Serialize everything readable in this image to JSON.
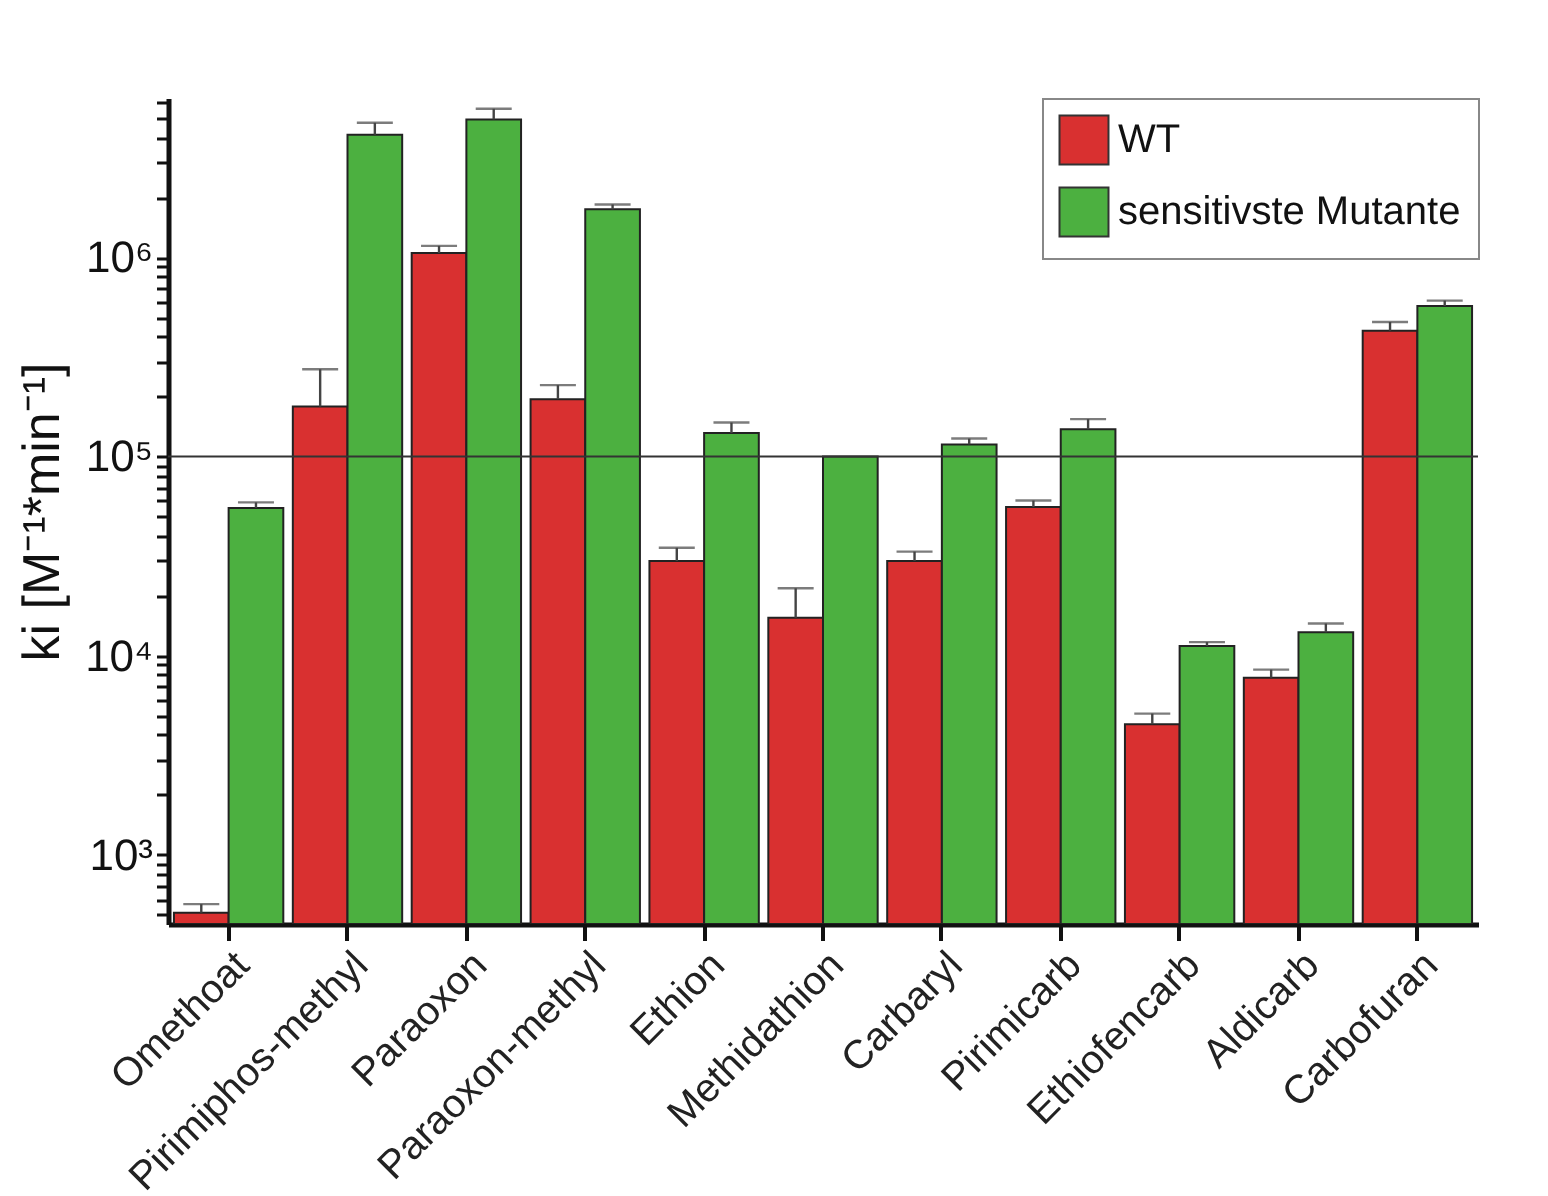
{
  "chart_data": {
    "type": "bar",
    "ylabel": "ki [M⁻¹*min⁻¹]",
    "categories": [
      "Omethoat",
      "Pirimiphos-methyl",
      "Paraoxon",
      "Paraoxon-methyl",
      "Ethion",
      "Methidathion",
      "Carbaryl",
      "Pirimicarb",
      "Ethiofencarb",
      "Aldicarb",
      "Carbofuran"
    ],
    "series": [
      {
        "name": "WT",
        "color": "#d93030",
        "values": [
          513,
          178000,
          1050000,
          194000,
          29900,
          15500,
          29900,
          55700,
          4530,
          7760,
          428000
        ],
        "errors": [
          [
            513,
            566
          ],
          [
            178000,
            274000
          ],
          [
            1050000,
            1140000
          ],
          [
            194000,
            228000
          ],
          [
            29900,
            34800
          ],
          [
            15500,
            21800
          ],
          [
            29900,
            33300
          ],
          [
            55700,
            60100
          ],
          [
            4530,
            5120
          ],
          [
            7760,
            8510
          ],
          [
            428000,
            473000
          ]
        ]
      },
      {
        "name": "sensitivste Mutante",
        "color": "#4cb040",
        "values": [
          55200,
          4120000,
          4920000,
          1740000,
          131000,
          100000,
          115000,
          137000,
          11200,
          13100,
          569000
        ],
        "errors": [
          [
            55200,
            58800
          ],
          [
            4120000,
            4730000
          ],
          [
            4920000,
            5560000
          ],
          [
            1740000,
            1840000
          ],
          [
            131000,
            148000
          ],
          null,
          [
            115000,
            123000
          ],
          [
            137000,
            154000
          ],
          [
            11200,
            11700
          ],
          [
            13100,
            14500
          ],
          [
            569000,
            606000
          ]
        ]
      }
    ],
    "log": true,
    "ylim": [
      450,
      6300000
    ],
    "yticks": [
      {
        "value": 500,
        "label": null
      },
      {
        "value": 600,
        "label": null
      },
      {
        "value": 700,
        "label": null
      },
      {
        "value": 800,
        "label": null
      },
      {
        "value": 900,
        "label": null
      },
      {
        "value": 1000,
        "label": "10³"
      },
      {
        "value": 2000,
        "label": null
      },
      {
        "value": 3000,
        "label": null
      },
      {
        "value": 4000,
        "label": null
      },
      {
        "value": 5000,
        "label": null
      },
      {
        "value": 6000,
        "label": null
      },
      {
        "value": 7000,
        "label": null
      },
      {
        "value": 8000,
        "label": null
      },
      {
        "value": 9000,
        "label": null
      },
      {
        "value": 10000,
        "label": "10⁴"
      },
      {
        "value": 20000,
        "label": null
      },
      {
        "value": 30000,
        "label": null
      },
      {
        "value": 40000,
        "label": null
      },
      {
        "value": 50000,
        "label": null
      },
      {
        "value": 60000,
        "label": null
      },
      {
        "value": 70000,
        "label": null
      },
      {
        "value": 80000,
        "label": null
      },
      {
        "value": 90000,
        "label": null
      },
      {
        "value": 100000,
        "label": "10⁵"
      },
      {
        "value": 200000,
        "label": null
      },
      {
        "value": 300000,
        "label": null
      },
      {
        "value": 400000,
        "label": null
      },
      {
        "value": 500000,
        "label": null
      },
      {
        "value": 600000,
        "label": null
      },
      {
        "value": 700000,
        "label": null
      },
      {
        "value": 800000,
        "label": null
      },
      {
        "value": 900000,
        "label": null
      },
      {
        "value": 1000000,
        "label": "10⁶"
      },
      {
        "value": 2000000,
        "label": null
      },
      {
        "value": 3000000,
        "label": null
      },
      {
        "value": 4000000,
        "label": null
      },
      {
        "value": 5000000,
        "label": null
      },
      {
        "value": 6000000,
        "label": null
      }
    ],
    "ref_lines": [
      {
        "axis": "y",
        "value": 100000,
        "color": "#333333"
      }
    ],
    "legend": "top right",
    "grid": false
  }
}
